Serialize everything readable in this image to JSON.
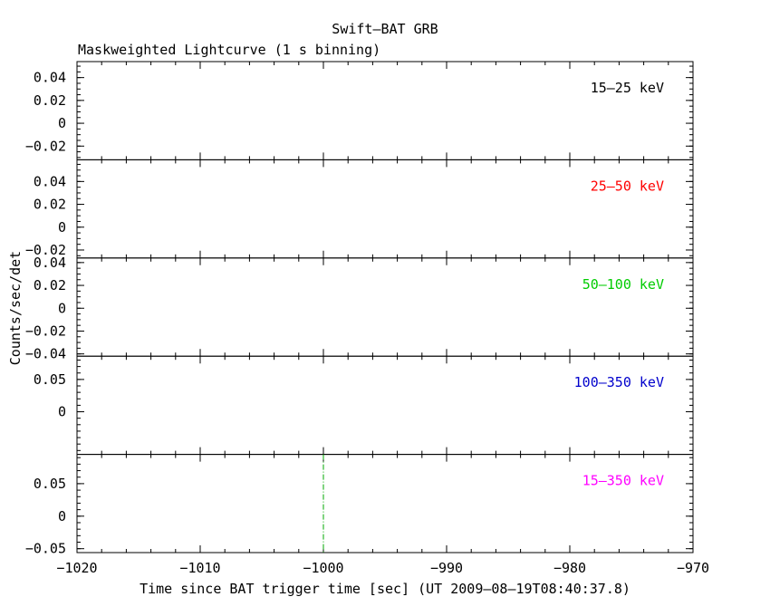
{
  "chart_data": {
    "type": "line",
    "title": "Swift–BAT GRB",
    "subtitle": "Maskweighted Lightcurve (1 s binning)",
    "xlabel": "Time since BAT trigger time [sec] (UT 2009–08–19T08:40:37.8)",
    "ylabel": "Counts/sec/det",
    "xlim": [
      -1020,
      -970
    ],
    "x_ticks": [
      -1020,
      -1010,
      -1000,
      -990,
      -980,
      -970
    ],
    "x_tick_labels": [
      "−1020",
      "−1010",
      "−1000",
      "−990",
      "−980",
      "−970"
    ],
    "grid": false,
    "trigger_marker": {
      "x": -1000,
      "color": "#00aa00",
      "style": "dash-dot",
      "panel": 4
    },
    "panels": [
      {
        "band": "15–25 keV",
        "color": "#000000",
        "ylim": [
          -0.032,
          0.054
        ],
        "y_ticks": [
          -0.02,
          0,
          0.02,
          0.04
        ],
        "y_tick_labels": [
          "−0.02",
          "0",
          "0.02",
          "0.04"
        ],
        "minor_step": 0.005,
        "series": []
      },
      {
        "band": "25–50 keV",
        "color": "#ff0000",
        "ylim": [
          -0.027,
          0.059
        ],
        "y_ticks": [
          -0.02,
          0,
          0.02,
          0.04
        ],
        "y_tick_labels": [
          "−0.02",
          "0",
          "0.02",
          "0.04"
        ],
        "minor_step": 0.005,
        "series": []
      },
      {
        "band": "50–100 keV",
        "color": "#00cc00",
        "ylim": [
          -0.042,
          0.044
        ],
        "y_ticks": [
          -0.04,
          -0.02,
          0,
          0.02,
          0.04
        ],
        "y_tick_labels": [
          "−0.04",
          "−0.02",
          "0",
          "0.02",
          "0.04"
        ],
        "minor_step": 0.005,
        "series": []
      },
      {
        "band": "100–350 keV",
        "color": "#0000cc",
        "ylim": [
          -0.066,
          0.086
        ],
        "y_ticks": [
          0,
          0.05
        ],
        "y_tick_labels": [
          "0",
          "0.05"
        ],
        "minor_step": 0.01,
        "series": []
      },
      {
        "band": "15–350 keV",
        "color": "#ff00ff",
        "ylim": [
          -0.056,
          0.095
        ],
        "y_ticks": [
          -0.05,
          0,
          0.05
        ],
        "y_tick_labels": [
          "−0.05",
          "0",
          "0.05"
        ],
        "minor_step": 0.01,
        "series": []
      }
    ]
  }
}
